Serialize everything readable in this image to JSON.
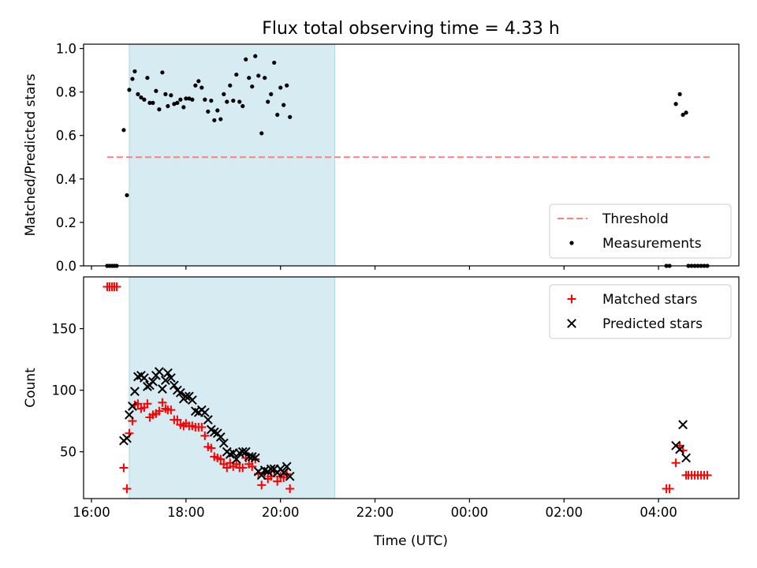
{
  "chart_data": {
    "type": "scatter",
    "title": "Flux total observing time = 4.33 h",
    "xlabel": "Time (UTC)",
    "x_ticks": [
      "16:00",
      "18:00",
      "20:00",
      "22:00",
      "00:00",
      "02:00",
      "04:00"
    ],
    "observing_window": {
      "start": "16:48",
      "end": "21:09",
      "color": "#add8e6"
    },
    "colors": {
      "threshold": "#ff7f7f",
      "measurements": "#000000",
      "matched": "#ff0000",
      "predicted": "#000000",
      "window": "#add8e6"
    },
    "panels": [
      {
        "ylabel": "Matched/Predicted stars",
        "ylim": [
          0,
          1.02
        ],
        "yticks": [
          "0.0",
          "0.2",
          "0.4",
          "0.6",
          "0.8",
          "1.0"
        ],
        "legend_position": "lower right",
        "threshold": {
          "name": "Threshold",
          "value": 0.5,
          "x_start": "16:20",
          "x_end": "05:05"
        },
        "series": [
          {
            "name": "Measurements",
            "marker": "dot",
            "points": [
              [
                "16:20",
                0.0
              ],
              [
                "16:23",
                0.0
              ],
              [
                "16:26",
                0.0
              ],
              [
                "16:29",
                0.0
              ],
              [
                "16:32",
                0.0
              ],
              [
                "16:41",
                0.625
              ],
              [
                "16:45",
                0.325
              ],
              [
                "16:48",
                0.81
              ],
              [
                "16:52",
                0.86
              ],
              [
                "16:55",
                0.895
              ],
              [
                "16:59",
                0.79
              ],
              [
                "17:03",
                0.775
              ],
              [
                "17:07",
                0.765
              ],
              [
                "17:11",
                0.865
              ],
              [
                "17:14",
                0.75
              ],
              [
                "17:18",
                0.75
              ],
              [
                "17:22",
                0.805
              ],
              [
                "17:26",
                0.72
              ],
              [
                "17:30",
                0.89
              ],
              [
                "17:34",
                0.79
              ],
              [
                "17:37",
                0.735
              ],
              [
                "17:41",
                0.785
              ],
              [
                "17:45",
                0.745
              ],
              [
                "17:49",
                0.75
              ],
              [
                "17:53",
                0.765
              ],
              [
                "17:57",
                0.73
              ],
              [
                "18:00",
                0.77
              ],
              [
                "18:04",
                0.77
              ],
              [
                "18:08",
                0.765
              ],
              [
                "18:12",
                0.83
              ],
              [
                "18:16",
                0.85
              ],
              [
                "18:20",
                0.82
              ],
              [
                "18:24",
                0.765
              ],
              [
                "18:28",
                0.71
              ],
              [
                "18:32",
                0.76
              ],
              [
                "18:36",
                0.67
              ],
              [
                "18:40",
                0.715
              ],
              [
                "18:44",
                0.675
              ],
              [
                "18:48",
                0.79
              ],
              [
                "18:52",
                0.755
              ],
              [
                "18:56",
                0.83
              ],
              [
                "19:00",
                0.76
              ],
              [
                "19:04",
                0.88
              ],
              [
                "19:08",
                0.755
              ],
              [
                "19:12",
                0.735
              ],
              [
                "19:16",
                0.95
              ],
              [
                "19:20",
                0.865
              ],
              [
                "19:24",
                0.825
              ],
              [
                "19:28",
                0.965
              ],
              [
                "19:32",
                0.875
              ],
              [
                "19:36",
                0.61
              ],
              [
                "19:40",
                0.865
              ],
              [
                "19:44",
                0.755
              ],
              [
                "19:48",
                0.79
              ],
              [
                "19:52",
                0.935
              ],
              [
                "19:56",
                0.695
              ],
              [
                "20:00",
                0.82
              ],
              [
                "20:04",
                0.74
              ],
              [
                "20:08",
                0.83
              ],
              [
                "20:12",
                0.685
              ],
              [
                "04:10",
                0.0
              ],
              [
                "04:14",
                0.0
              ],
              [
                "04:22",
                0.745
              ],
              [
                "04:27",
                0.79
              ],
              [
                "04:31",
                0.695
              ],
              [
                "04:35",
                0.705
              ],
              [
                "04:38",
                0.0
              ],
              [
                "04:42",
                0.0
              ],
              [
                "04:46",
                0.0
              ],
              [
                "04:50",
                0.0
              ],
              [
                "04:54",
                0.0
              ],
              [
                "04:58",
                0.0
              ],
              [
                "05:02",
                0.0
              ]
            ]
          }
        ]
      },
      {
        "ylabel": "Count",
        "ylim": [
          12,
          192
        ],
        "yticks": [
          "50",
          "100",
          "150"
        ],
        "legend_position": "upper right",
        "series": [
          {
            "name": "Matched stars",
            "marker": "plus",
            "points": [
              [
                "16:20",
                184
              ],
              [
                "16:23",
                184
              ],
              [
                "16:26",
                184
              ],
              [
                "16:29",
                184
              ],
              [
                "16:32",
                184
              ],
              [
                "16:41",
                37
              ],
              [
                "16:45",
                20
              ],
              [
                "16:48",
                65
              ],
              [
                "16:52",
                75
              ],
              [
                "16:55",
                88
              ],
              [
                "16:59",
                89
              ],
              [
                "17:03",
                85
              ],
              [
                "17:07",
                86
              ],
              [
                "17:11",
                89
              ],
              [
                "17:14",
                78
              ],
              [
                "17:18",
                80
              ],
              [
                "17:22",
                81
              ],
              [
                "17:26",
                83
              ],
              [
                "17:30",
                90
              ],
              [
                "17:34",
                85
              ],
              [
                "17:37",
                84
              ],
              [
                "17:41",
                84
              ],
              [
                "17:45",
                76
              ],
              [
                "17:49",
                76
              ],
              [
                "17:53",
                72
              ],
              [
                "17:57",
                71
              ],
              [
                "18:00",
                73
              ],
              [
                "18:04",
                71
              ],
              [
                "18:08",
                71
              ],
              [
                "18:12",
                70
              ],
              [
                "18:16",
                70
              ],
              [
                "18:20",
                70
              ],
              [
                "18:24",
                63
              ],
              [
                "18:28",
                54
              ],
              [
                "18:32",
                53
              ],
              [
                "18:36",
                46
              ],
              [
                "18:40",
                45
              ],
              [
                "18:44",
                44
              ],
              [
                "18:48",
                40
              ],
              [
                "18:52",
                37
              ],
              [
                "18:56",
                41
              ],
              [
                "19:00",
                38
              ],
              [
                "19:04",
                40
              ],
              [
                "19:08",
                37
              ],
              [
                "19:12",
                37
              ],
              [
                "19:16",
                45
              ],
              [
                "19:20",
                40
              ],
              [
                "19:24",
                38
              ],
              [
                "19:28",
                44
              ],
              [
                "19:32",
                32
              ],
              [
                "19:36",
                23
              ],
              [
                "19:40",
                33
              ],
              [
                "19:44",
                28
              ],
              [
                "19:48",
                30
              ],
              [
                "19:52",
                34
              ],
              [
                "19:56",
                26
              ],
              [
                "20:00",
                30
              ],
              [
                "20:04",
                29
              ],
              [
                "20:08",
                32
              ],
              [
                "20:12",
                20
              ],
              [
                "04:10",
                20
              ],
              [
                "04:14",
                20
              ],
              [
                "04:22",
                41
              ],
              [
                "04:27",
                55
              ],
              [
                "04:31",
                51
              ],
              [
                "04:35",
                31
              ],
              [
                "04:38",
                31
              ],
              [
                "04:42",
                31
              ],
              [
                "04:46",
                31
              ],
              [
                "04:50",
                31
              ],
              [
                "04:54",
                31
              ],
              [
                "04:58",
                31
              ],
              [
                "05:02",
                31
              ]
            ]
          },
          {
            "name": "Predicted stars",
            "marker": "x",
            "points": [
              [
                "16:41",
                59
              ],
              [
                "16:45",
                61
              ],
              [
                "16:48",
                80
              ],
              [
                "16:52",
                87
              ],
              [
                "16:55",
                99
              ],
              [
                "16:59",
                111
              ],
              [
                "17:03",
                112
              ],
              [
                "17:07",
                110
              ],
              [
                "17:11",
                103
              ],
              [
                "17:14",
                104
              ],
              [
                "17:18",
                107
              ],
              [
                "17:22",
                112
              ],
              [
                "17:26",
                115
              ],
              [
                "17:30",
                101
              ],
              [
                "17:34",
                108
              ],
              [
                "17:37",
                114
              ],
              [
                "17:41",
                110
              ],
              [
                "17:45",
                104
              ],
              [
                "17:49",
                100
              ],
              [
                "17:53",
                98
              ],
              [
                "17:57",
                93
              ],
              [
                "18:00",
                95
              ],
              [
                "18:04",
                95
              ],
              [
                "18:08",
                92
              ],
              [
                "18:12",
                83
              ],
              [
                "18:16",
                82
              ],
              [
                "18:20",
                84
              ],
              [
                "18:24",
                82
              ],
              [
                "18:28",
                76
              ],
              [
                "18:32",
                68
              ],
              [
                "18:36",
                66
              ],
              [
                "18:40",
                65
              ],
              [
                "18:44",
                62
              ],
              [
                "18:48",
                57
              ],
              [
                "18:52",
                50
              ],
              [
                "18:56",
                48
              ],
              [
                "19:00",
                49
              ],
              [
                "19:04",
                44
              ],
              [
                "19:08",
                49
              ],
              [
                "19:12",
                50
              ],
              [
                "19:16",
                50
              ],
              [
                "19:20",
                46
              ],
              [
                "19:24",
                46
              ],
              [
                "19:28",
                45
              ],
              [
                "19:32",
                34
              ],
              [
                "19:36",
                31
              ],
              [
                "19:40",
                35
              ],
              [
                "19:44",
                34
              ],
              [
                "19:48",
                36
              ],
              [
                "19:52",
                36
              ],
              [
                "19:56",
                33
              ],
              [
                "20:00",
                36
              ],
              [
                "20:04",
                33
              ],
              [
                "20:08",
                38
              ],
              [
                "20:12",
                30
              ],
              [
                "04:22",
                55
              ],
              [
                "04:27",
                52
              ],
              [
                "04:31",
                72
              ],
              [
                "04:35",
                45
              ]
            ]
          }
        ]
      }
    ]
  }
}
